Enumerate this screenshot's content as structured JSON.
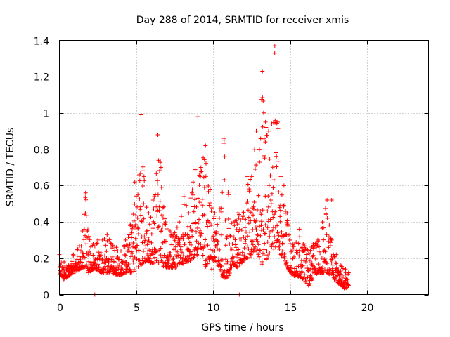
{
  "chart_data": {
    "type": "scatter",
    "title": "Day 288 of 2014, SRMTID for receiver xmis",
    "xlabel": "GPS time / hours",
    "ylabel": "SRMTID / TECUs",
    "xlim": [
      0,
      24
    ],
    "ylim": [
      0,
      1.4
    ],
    "x_ticks": [
      0,
      5,
      10,
      15,
      20
    ],
    "y_ticks": [
      0,
      0.2,
      0.4,
      0.6,
      0.8,
      1,
      1.2,
      1.4
    ],
    "x_tick_labels": [
      "0",
      "5",
      "10",
      "15",
      "20"
    ],
    "y_tick_labels": [
      "0",
      "0.2",
      "0.4",
      "0.6",
      "0.8",
      "1",
      "1.2",
      "1.4"
    ],
    "grid": true,
    "marker": "+",
    "color": "#ff0000",
    "series": [
      {
        "name": "SRMTID",
        "envelope_x": [
          0.0,
          0.3,
          0.6,
          0.9,
          1.2,
          1.5,
          1.7,
          1.9,
          2.2,
          2.5,
          2.8,
          3.1,
          3.4,
          3.7,
          4.0,
          4.3,
          4.6,
          4.9,
          5.1,
          5.3,
          5.5,
          5.8,
          6.1,
          6.4,
          6.6,
          6.9,
          7.2,
          7.5,
          7.8,
          8.1,
          8.4,
          8.7,
          9.0,
          9.2,
          9.5,
          9.8,
          10.1,
          10.4,
          10.7,
          11.0,
          11.3,
          11.6,
          11.9,
          12.2,
          12.5,
          12.8,
          13.0,
          13.2,
          13.4,
          13.6,
          13.8,
          14.0,
          14.2,
          14.4,
          14.6,
          14.8,
          15.0,
          15.3,
          15.6,
          15.9,
          16.2,
          16.5,
          16.8,
          17.1,
          17.4,
          17.7,
          18.0,
          18.3,
          18.6,
          18.8
        ],
        "envelope_min": [
          0.12,
          0.08,
          0.1,
          0.12,
          0.13,
          0.15,
          0.15,
          0.12,
          0.14,
          0.13,
          0.12,
          0.12,
          0.12,
          0.11,
          0.11,
          0.12,
          0.12,
          0.13,
          0.15,
          0.16,
          0.18,
          0.18,
          0.17,
          0.18,
          0.16,
          0.15,
          0.15,
          0.14,
          0.17,
          0.17,
          0.18,
          0.2,
          0.22,
          0.25,
          0.15,
          0.2,
          0.18,
          0.15,
          0.08,
          0.1,
          0.16,
          0.15,
          0.18,
          0.2,
          0.2,
          0.25,
          0.2,
          0.16,
          0.18,
          0.22,
          0.25,
          0.25,
          0.28,
          0.22,
          0.2,
          0.15,
          0.12,
          0.1,
          0.1,
          0.08,
          0.05,
          0.1,
          0.12,
          0.12,
          0.12,
          0.1,
          0.07,
          0.05,
          0.03,
          0.05
        ],
        "envelope_max": [
          0.22,
          0.18,
          0.16,
          0.22,
          0.25,
          0.35,
          0.56,
          0.32,
          0.28,
          0.3,
          0.3,
          0.33,
          0.28,
          0.26,
          0.24,
          0.3,
          0.38,
          0.62,
          0.55,
          0.99,
          0.65,
          0.45,
          0.52,
          0.88,
          0.7,
          0.4,
          0.35,
          0.34,
          0.4,
          0.54,
          0.45,
          0.62,
          0.98,
          0.7,
          0.82,
          0.58,
          0.45,
          0.42,
          0.86,
          0.55,
          0.4,
          0.45,
          0.42,
          0.65,
          0.65,
          0.9,
          0.8,
          1.23,
          0.95,
          0.9,
          0.94,
          1.37,
          0.95,
          0.65,
          0.6,
          0.45,
          0.3,
          0.28,
          0.36,
          0.28,
          0.24,
          0.28,
          0.3,
          0.4,
          0.52,
          0.3,
          0.22,
          0.16,
          0.14,
          0.12
        ],
        "isolated_points": [
          [
            2.3,
            0.0
          ],
          [
            11.7,
            0.0
          ],
          [
            9.9,
            0.14
          ],
          [
            17.7,
            0.52
          ]
        ]
      }
    ]
  }
}
